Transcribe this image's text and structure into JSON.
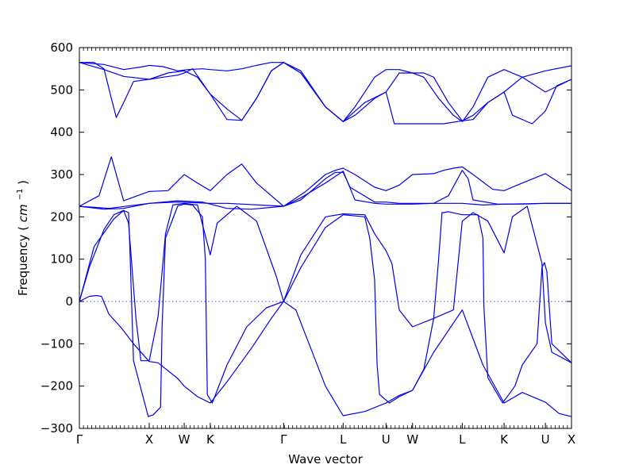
{
  "chart_data": {
    "type": "line",
    "title": "",
    "xlabel": "Wave vector",
    "ylabel": "Frequency",
    "ylabel_unit": "cm",
    "ylabel_unit_exp": "−1",
    "ylim": [
      -300,
      600
    ],
    "yticks": [
      -300,
      -200,
      -100,
      0,
      100,
      200,
      300,
      400,
      500,
      600
    ],
    "xlim": [
      0,
      1
    ],
    "kpoints": [
      {
        "label": "Γ",
        "x": 0.0
      },
      {
        "label": "X",
        "x": 0.142
      },
      {
        "label": "W",
        "x": 0.213
      },
      {
        "label": "K",
        "x": 0.266
      },
      {
        "label": "Γ",
        "x": 0.415
      },
      {
        "label": "L",
        "x": 0.536
      },
      {
        "label": "U",
        "x": 0.623
      },
      {
        "label": "W",
        "x": 0.677
      },
      {
        "label": "L",
        "x": 0.778
      },
      {
        "label": "K",
        "x": 0.863
      },
      {
        "label": "U",
        "x": 0.947
      },
      {
        "label": "X",
        "x": 1.0
      }
    ],
    "zero_line": true,
    "line_color": "#0000ee",
    "series": [
      {
        "x": [
          0.0,
          0.02,
          0.035,
          0.045,
          0.06,
          0.085,
          0.11,
          0.142,
          0.16,
          0.2,
          0.213,
          0.24,
          0.266,
          0.3,
          0.35,
          0.39,
          0.415,
          0.44,
          0.5,
          0.536,
          0.58,
          0.623,
          0.65,
          0.677,
          0.72,
          0.778,
          0.82,
          0.863,
          0.9,
          0.947,
          0.975,
          1.0
        ],
        "y": [
          0,
          12,
          14,
          12,
          -30,
          -62,
          -100,
          -142,
          -145,
          -182,
          -200,
          -225,
          -240,
          -190,
          -110,
          -40,
          0,
          -20,
          -200,
          -270,
          -260,
          -240,
          -222,
          -210,
          -120,
          -20,
          -150,
          -240,
          -215,
          -238,
          -265,
          -272
        ]
      },
      {
        "x": [
          0.0,
          0.03,
          0.07,
          0.09,
          0.1,
          0.115,
          0.125,
          0.142,
          0.16,
          0.175,
          0.19,
          0.213,
          0.24,
          0.255,
          0.266,
          0.28,
          0.32,
          0.36,
          0.4,
          0.415,
          0.45,
          0.5,
          0.536,
          0.58,
          0.6,
          0.623,
          0.635,
          0.65,
          0.677,
          0.72,
          0.76,
          0.778,
          0.8,
          0.83,
          0.863,
          0.88,
          0.91,
          0.94,
          0.947,
          0.96,
          1.0
        ],
        "y": [
          0,
          130,
          195,
          215,
          185,
          -40,
          -140,
          -140,
          -35,
          160,
          228,
          232,
          228,
          160,
          110,
          185,
          225,
          190,
          60,
          0,
          110,
          200,
          207,
          205,
          160,
          120,
          90,
          -20,
          -60,
          -40,
          -20,
          190,
          210,
          190,
          115,
          200,
          225,
          90,
          -50,
          -120,
          -145
        ]
      },
      {
        "x": [
          0.0,
          0.02,
          0.05,
          0.07,
          0.09,
          0.1,
          0.102,
          0.11,
          0.14,
          0.15,
          0.165,
          0.168,
          0.175,
          0.2,
          0.213,
          0.23,
          0.25,
          0.256,
          0.26,
          0.27,
          0.3,
          0.34,
          0.38,
          0.415,
          0.45,
          0.5,
          0.536,
          0.58,
          0.59,
          0.6,
          0.605,
          0.61,
          0.63,
          0.65,
          0.677,
          0.7,
          0.72,
          0.73,
          0.737,
          0.74,
          0.75,
          0.778,
          0.81,
          0.82,
          0.822,
          0.83,
          0.86,
          0.885,
          0.9,
          0.93,
          0.94,
          0.945,
          0.95,
          0.96,
          1.0
        ],
        "y": [
          0,
          80,
          170,
          205,
          215,
          210,
          150,
          -140,
          -272,
          -268,
          -250,
          -60,
          150,
          226,
          230,
          228,
          200,
          100,
          -220,
          -240,
          -150,
          -60,
          -15,
          0,
          80,
          175,
          205,
          200,
          150,
          50,
          -150,
          -220,
          -240,
          -225,
          -210,
          -160,
          -40,
          100,
          210,
          210,
          212,
          205,
          205,
          150,
          -10,
          -180,
          -240,
          -200,
          -150,
          -100,
          80,
          92,
          70,
          -100,
          -145
        ]
      },
      {
        "x": [
          0.0,
          0.05,
          0.09,
          0.142,
          0.2,
          0.25,
          0.3,
          0.35,
          0.415,
          0.46,
          0.5,
          0.52,
          0.536,
          0.56,
          0.6,
          0.623,
          0.65,
          0.677,
          0.72,
          0.74,
          0.76,
          0.778,
          0.8,
          0.84,
          0.863,
          0.9,
          0.947,
          1.0
        ],
        "y": [
          225,
          218,
          220,
          232,
          238,
          235,
          220,
          218,
          225,
          260,
          300,
          310,
          315,
          300,
          270,
          262,
          275,
          300,
          302,
          310,
          315,
          318,
          300,
          265,
          262,
          280,
          302,
          262
        ]
      },
      {
        "x": [
          0.0,
          0.04,
          0.065,
          0.09,
          0.142,
          0.18,
          0.213,
          0.24,
          0.266,
          0.3,
          0.33,
          0.36,
          0.415,
          0.45,
          0.5,
          0.52,
          0.536,
          0.55,
          0.6,
          0.623,
          0.65,
          0.677,
          0.72,
          0.75,
          0.778,
          0.79,
          0.8,
          0.85,
          0.863,
          0.9,
          0.947,
          1.0
        ],
        "y": [
          225,
          250,
          342,
          238,
          260,
          262,
          300,
          280,
          262,
          300,
          325,
          280,
          225,
          240,
          290,
          305,
          305,
          270,
          235,
          235,
          232,
          232,
          232,
          250,
          310,
          290,
          240,
          230,
          230,
          230,
          232,
          232
        ]
      },
      {
        "x": [
          0.0,
          0.06,
          0.142,
          0.2,
          0.266,
          0.3,
          0.4,
          0.415,
          0.45,
          0.5,
          0.536,
          0.56,
          0.6,
          0.623,
          0.677,
          0.72,
          0.778,
          0.82,
          0.863,
          0.947,
          1.0
        ],
        "y": [
          225,
          220,
          232,
          235,
          232,
          232,
          226,
          225,
          245,
          280,
          308,
          240,
          232,
          230,
          230,
          232,
          232,
          228,
          230,
          232,
          232
        ]
      },
      {
        "x": [
          0.0,
          0.03,
          0.05,
          0.065,
          0.075,
          0.09,
          0.11,
          0.142,
          0.18,
          0.213,
          0.24,
          0.266,
          0.3,
          0.33,
          0.36,
          0.39,
          0.415,
          0.45,
          0.5,
          0.536,
          0.58,
          0.623,
          0.64,
          0.677,
          0.7,
          0.74,
          0.778,
          0.8,
          0.83,
          0.863,
          0.88,
          0.92,
          0.947,
          0.97,
          1.0
        ],
        "y": [
          565,
          565,
          550,
          480,
          435,
          470,
          520,
          525,
          540,
          545,
          530,
          490,
          455,
          428,
          480,
          545,
          565,
          540,
          460,
          425,
          470,
          495,
          420,
          420,
          420,
          420,
          427,
          430,
          470,
          495,
          440,
          420,
          450,
          510,
          525
        ]
      },
      {
        "x": [
          0.0,
          0.05,
          0.09,
          0.142,
          0.17,
          0.2,
          0.213,
          0.23,
          0.266,
          0.3,
          0.33,
          0.36,
          0.39,
          0.415,
          0.45,
          0.5,
          0.536,
          0.56,
          0.6,
          0.623,
          0.65,
          0.677,
          0.7,
          0.72,
          0.75,
          0.778,
          0.8,
          0.83,
          0.863,
          0.9,
          0.947,
          1.0
        ],
        "y": [
          565,
          548,
          532,
          525,
          530,
          535,
          540,
          550,
          490,
          430,
          428,
          480,
          545,
          565,
          540,
          460,
          425,
          440,
          480,
          495,
          540,
          540,
          540,
          530,
          470,
          427,
          440,
          470,
          495,
          530,
          495,
          525
        ]
      },
      {
        "x": [
          0.0,
          0.05,
          0.09,
          0.13,
          0.142,
          0.17,
          0.2,
          0.22,
          0.25,
          0.266,
          0.3,
          0.33,
          0.36,
          0.39,
          0.415,
          0.45,
          0.5,
          0.536,
          0.56,
          0.6,
          0.623,
          0.65,
          0.677,
          0.7,
          0.73,
          0.76,
          0.778,
          0.8,
          0.83,
          0.863,
          0.9,
          0.947,
          1.0
        ],
        "y": [
          565,
          560,
          548,
          555,
          558,
          555,
          545,
          548,
          550,
          548,
          545,
          550,
          558,
          565,
          565,
          545,
          460,
          425,
          460,
          530,
          548,
          548,
          540,
          530,
          480,
          440,
          425,
          460,
          530,
          548,
          530,
          545,
          557
        ]
      }
    ]
  }
}
